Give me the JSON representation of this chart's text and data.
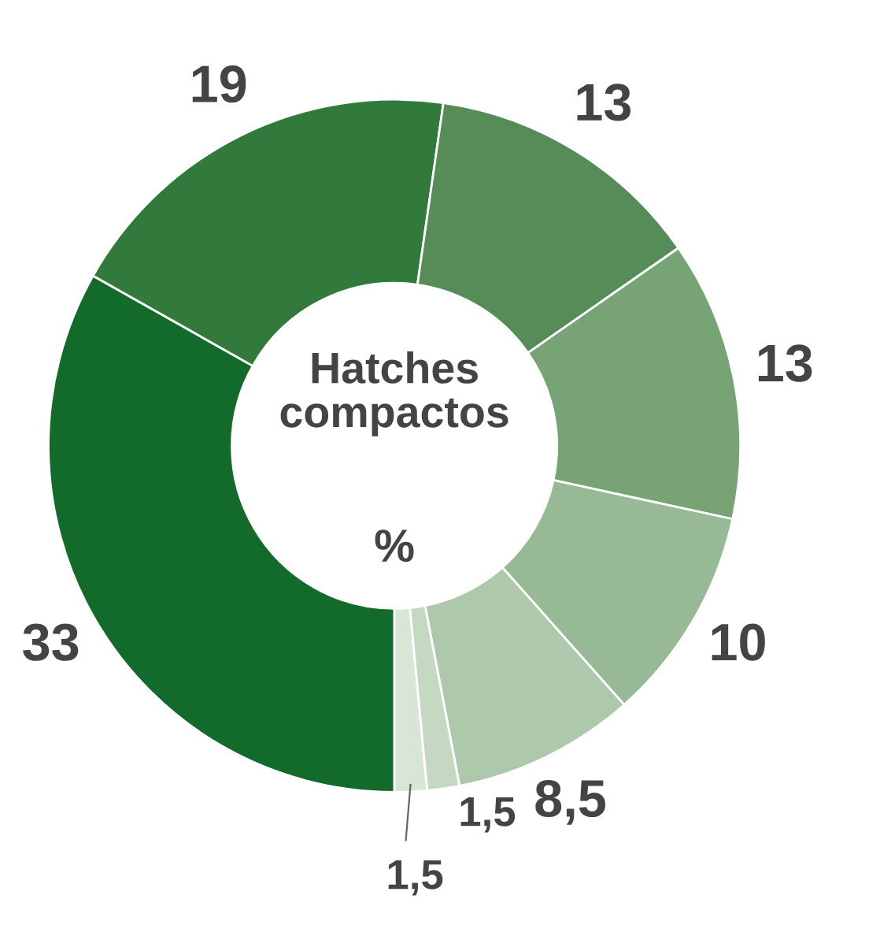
{
  "chart_data": {
    "type": "donut",
    "title": "Hatches compactos",
    "subtitle": "%",
    "categories": [
      null,
      null,
      null,
      null,
      null,
      null,
      null,
      null
    ],
    "values": [
      33,
      19,
      13,
      13,
      10,
      8.5,
      1.5,
      1.5
    ],
    "value_labels": [
      "33",
      "19",
      "13",
      "13",
      "10",
      "8,5",
      "1,5",
      "1,5"
    ],
    "colors": [
      "#136b2b",
      "#317a3c",
      "#558c57",
      "#78a475",
      "#98b995",
      "#adc8aa",
      "#c5d9c2",
      "#d8e6d5"
    ],
    "legend": false
  }
}
